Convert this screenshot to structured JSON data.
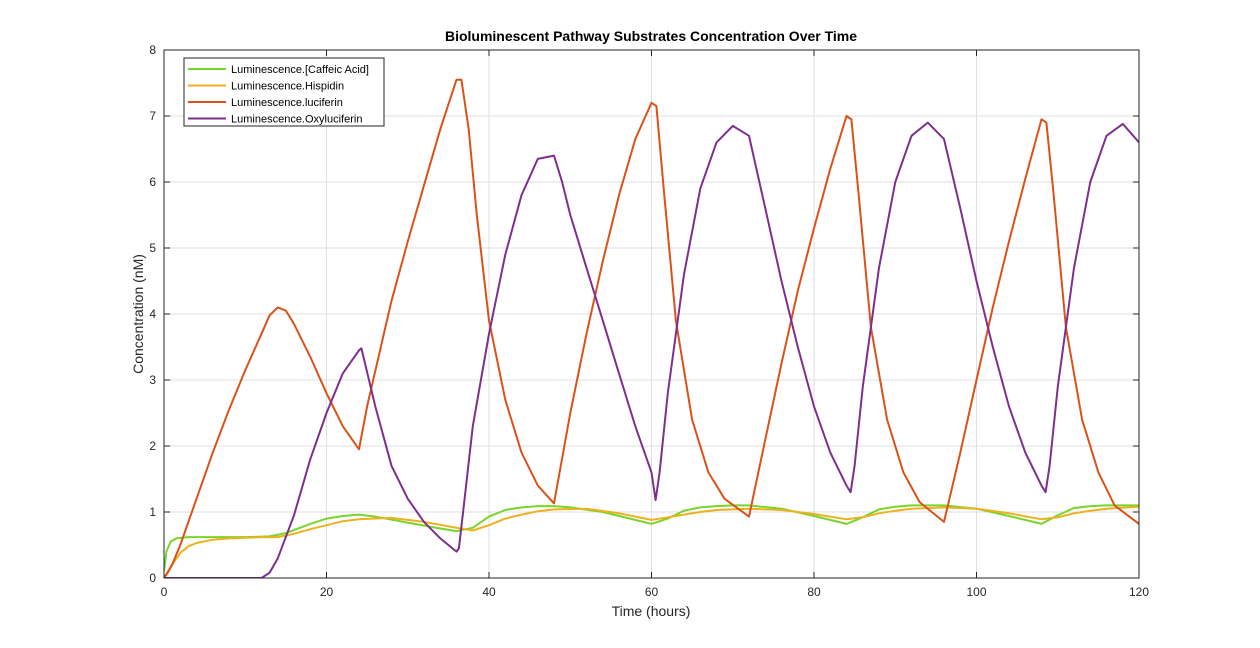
{
  "chart_data": {
    "type": "line",
    "title": "Bioluminescent Pathway Substrates Concentration Over Time",
    "xlabel": "Time (hours)",
    "ylabel": "Concentration (nM)",
    "xlim": [
      0,
      120
    ],
    "ylim": [
      0,
      8
    ],
    "xticks": [
      0,
      20,
      40,
      60,
      80,
      100,
      120
    ],
    "yticks": [
      0,
      1,
      2,
      3,
      4,
      5,
      6,
      7,
      8
    ],
    "grid": true,
    "legend_position": "top-left",
    "series": [
      {
        "name": "Luminescence.[Caffeic Acid]",
        "color": "#77d52b",
        "points": [
          [
            0,
            0.1
          ],
          [
            0.3,
            0.4
          ],
          [
            0.8,
            0.55
          ],
          [
            1.5,
            0.6
          ],
          [
            3,
            0.62
          ],
          [
            6,
            0.62
          ],
          [
            10,
            0.62
          ],
          [
            13,
            0.63
          ],
          [
            15,
            0.68
          ],
          [
            18,
            0.82
          ],
          [
            20,
            0.9
          ],
          [
            22,
            0.94
          ],
          [
            24,
            0.96
          ],
          [
            26,
            0.93
          ],
          [
            30,
            0.84
          ],
          [
            34,
            0.75
          ],
          [
            36,
            0.71
          ],
          [
            38,
            0.76
          ],
          [
            40,
            0.93
          ],
          [
            42,
            1.03
          ],
          [
            44,
            1.07
          ],
          [
            46,
            1.09
          ],
          [
            48,
            1.09
          ],
          [
            50,
            1.07
          ],
          [
            54,
            1.0
          ],
          [
            58,
            0.88
          ],
          [
            60,
            0.82
          ],
          [
            62,
            0.9
          ],
          [
            64,
            1.02
          ],
          [
            66,
            1.07
          ],
          [
            68,
            1.09
          ],
          [
            70,
            1.1
          ],
          [
            72,
            1.1
          ],
          [
            76,
            1.05
          ],
          [
            80,
            0.94
          ],
          [
            84,
            0.82
          ],
          [
            86,
            0.92
          ],
          [
            88,
            1.04
          ],
          [
            90,
            1.08
          ],
          [
            92,
            1.1
          ],
          [
            96,
            1.1
          ],
          [
            100,
            1.05
          ],
          [
            104,
            0.94
          ],
          [
            108,
            0.82
          ],
          [
            110,
            0.95
          ],
          [
            112,
            1.06
          ],
          [
            114,
            1.09
          ],
          [
            116,
            1.1
          ],
          [
            120,
            1.1
          ]
        ]
      },
      {
        "name": "Luminescence.Hispidin",
        "color": "#edb120",
        "points": [
          [
            0,
            0.0
          ],
          [
            0.5,
            0.08
          ],
          [
            1,
            0.2
          ],
          [
            2,
            0.38
          ],
          [
            3,
            0.48
          ],
          [
            4,
            0.53
          ],
          [
            6,
            0.58
          ],
          [
            8,
            0.6
          ],
          [
            12,
            0.62
          ],
          [
            14,
            0.62
          ],
          [
            16,
            0.67
          ],
          [
            18,
            0.74
          ],
          [
            20,
            0.8
          ],
          [
            22,
            0.86
          ],
          [
            24,
            0.89
          ],
          [
            28,
            0.91
          ],
          [
            32,
            0.85
          ],
          [
            36,
            0.76
          ],
          [
            38,
            0.72
          ],
          [
            40,
            0.8
          ],
          [
            42,
            0.9
          ],
          [
            44,
            0.96
          ],
          [
            46,
            1.01
          ],
          [
            48,
            1.04
          ],
          [
            52,
            1.05
          ],
          [
            56,
            0.98
          ],
          [
            60,
            0.88
          ],
          [
            62,
            0.92
          ],
          [
            64,
            0.96
          ],
          [
            66,
            1.0
          ],
          [
            68,
            1.03
          ],
          [
            72,
            1.05
          ],
          [
            76,
            1.03
          ],
          [
            80,
            0.97
          ],
          [
            84,
            0.89
          ],
          [
            86,
            0.92
          ],
          [
            88,
            0.98
          ],
          [
            90,
            1.02
          ],
          [
            92,
            1.05
          ],
          [
            96,
            1.07
          ],
          [
            100,
            1.05
          ],
          [
            104,
            0.98
          ],
          [
            108,
            0.89
          ],
          [
            110,
            0.92
          ],
          [
            112,
            0.98
          ],
          [
            114,
            1.02
          ],
          [
            116,
            1.05
          ],
          [
            120,
            1.08
          ]
        ]
      },
      {
        "name": "Luminescence.luciferin",
        "color": "#d95319",
        "points": [
          [
            0,
            0.0
          ],
          [
            1,
            0.2
          ],
          [
            2,
            0.5
          ],
          [
            4,
            1.2
          ],
          [
            6,
            1.9
          ],
          [
            8,
            2.55
          ],
          [
            10,
            3.15
          ],
          [
            12,
            3.7
          ],
          [
            13,
            3.98
          ],
          [
            14,
            4.1
          ],
          [
            15,
            4.05
          ],
          [
            16,
            3.85
          ],
          [
            18,
            3.35
          ],
          [
            20,
            2.8
          ],
          [
            22,
            2.3
          ],
          [
            24,
            1.95
          ],
          [
            25,
            2.6
          ],
          [
            28,
            4.2
          ],
          [
            30,
            5.1
          ],
          [
            32,
            5.95
          ],
          [
            34,
            6.8
          ],
          [
            36,
            7.55
          ],
          [
            36.6,
            7.55
          ],
          [
            37.5,
            6.8
          ],
          [
            38.5,
            5.5
          ],
          [
            40,
            3.9
          ],
          [
            42,
            2.7
          ],
          [
            44,
            1.9
          ],
          [
            46,
            1.4
          ],
          [
            48,
            1.13
          ],
          [
            50,
            2.5
          ],
          [
            52,
            3.7
          ],
          [
            54,
            4.8
          ],
          [
            56,
            5.8
          ],
          [
            58,
            6.65
          ],
          [
            60,
            7.2
          ],
          [
            60.6,
            7.15
          ],
          [
            61.5,
            5.9
          ],
          [
            63,
            3.9
          ],
          [
            65,
            2.4
          ],
          [
            67,
            1.6
          ],
          [
            69,
            1.2
          ],
          [
            72,
            0.93
          ],
          [
            74,
            2.1
          ],
          [
            76,
            3.25
          ],
          [
            78,
            4.35
          ],
          [
            80,
            5.3
          ],
          [
            82,
            6.2
          ],
          [
            84,
            7.0
          ],
          [
            84.6,
            6.95
          ],
          [
            85.5,
            5.8
          ],
          [
            87,
            3.8
          ],
          [
            89,
            2.4
          ],
          [
            91,
            1.6
          ],
          [
            93,
            1.15
          ],
          [
            96,
            0.85
          ],
          [
            98,
            1.9
          ],
          [
            100,
            3.0
          ],
          [
            102,
            4.1
          ],
          [
            104,
            5.1
          ],
          [
            106,
            6.05
          ],
          [
            108,
            6.95
          ],
          [
            108.6,
            6.9
          ],
          [
            109.5,
            5.8
          ],
          [
            111,
            3.8
          ],
          [
            113,
            2.4
          ],
          [
            115,
            1.6
          ],
          [
            117,
            1.1
          ],
          [
            120,
            0.82
          ]
        ]
      },
      {
        "name": "Luminescence.Oxyluciferin",
        "color": "#7e2f8e",
        "points": [
          [
            0,
            0.0
          ],
          [
            12,
            0.0
          ],
          [
            13,
            0.08
          ],
          [
            14,
            0.3
          ],
          [
            16,
            0.95
          ],
          [
            18,
            1.8
          ],
          [
            20,
            2.5
          ],
          [
            22,
            3.1
          ],
          [
            24,
            3.45
          ],
          [
            24.3,
            3.48
          ],
          [
            26,
            2.6
          ],
          [
            28,
            1.7
          ],
          [
            30,
            1.2
          ],
          [
            32,
            0.85
          ],
          [
            34,
            0.6
          ],
          [
            36,
            0.4
          ],
          [
            36.3,
            0.45
          ],
          [
            37,
            1.2
          ],
          [
            38,
            2.3
          ],
          [
            40,
            3.7
          ],
          [
            42,
            4.9
          ],
          [
            44,
            5.8
          ],
          [
            46,
            6.35
          ],
          [
            48,
            6.4
          ],
          [
            49,
            6.0
          ],
          [
            50,
            5.5
          ],
          [
            52,
            4.7
          ],
          [
            54,
            3.9
          ],
          [
            56,
            3.1
          ],
          [
            58,
            2.3
          ],
          [
            60,
            1.6
          ],
          [
            60.5,
            1.18
          ],
          [
            61,
            1.6
          ],
          [
            62,
            2.8
          ],
          [
            64,
            4.6
          ],
          [
            66,
            5.9
          ],
          [
            68,
            6.6
          ],
          [
            70,
            6.85
          ],
          [
            72,
            6.7
          ],
          [
            74,
            5.6
          ],
          [
            76,
            4.5
          ],
          [
            78,
            3.5
          ],
          [
            80,
            2.6
          ],
          [
            82,
            1.9
          ],
          [
            84,
            1.4
          ],
          [
            84.5,
            1.3
          ],
          [
            85,
            1.7
          ],
          [
            86,
            2.9
          ],
          [
            88,
            4.7
          ],
          [
            90,
            6.0
          ],
          [
            92,
            6.7
          ],
          [
            94,
            6.9
          ],
          [
            96,
            6.65
          ],
          [
            98,
            5.6
          ],
          [
            100,
            4.5
          ],
          [
            102,
            3.5
          ],
          [
            104,
            2.6
          ],
          [
            106,
            1.9
          ],
          [
            108,
            1.4
          ],
          [
            108.5,
            1.3
          ],
          [
            109,
            1.7
          ],
          [
            110,
            2.9
          ],
          [
            112,
            4.7
          ],
          [
            114,
            6.0
          ],
          [
            116,
            6.7
          ],
          [
            118,
            6.88
          ],
          [
            120,
            6.6
          ]
        ]
      }
    ]
  }
}
